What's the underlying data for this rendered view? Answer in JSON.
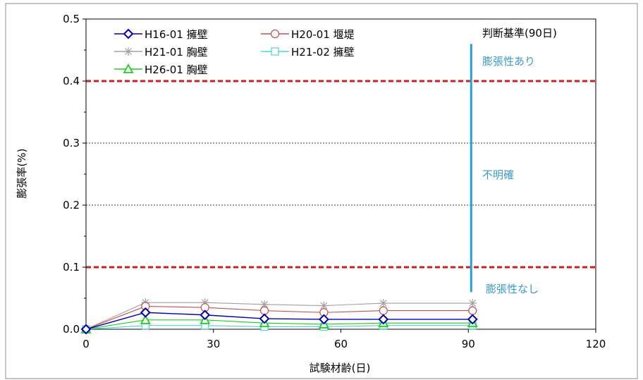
{
  "chart_data": {
    "type": "line",
    "title": "",
    "xlabel": "試験材齢(日)",
    "ylabel": "膨張率(%)",
    "xlim": [
      0,
      120
    ],
    "ylim": [
      0,
      0.5
    ],
    "x_ticks": [
      "0",
      "30",
      "60",
      "90",
      "120"
    ],
    "y_ticks": [
      "0.0",
      "0.1",
      "0.2",
      "0.3",
      "0.4",
      "0.5"
    ],
    "x": [
      0,
      14,
      28,
      42,
      56,
      70,
      91
    ],
    "series": [
      {
        "name": "H16-01 擁壁",
        "color": "#0000b0",
        "marker": "diamond",
        "values": [
          0,
          0.027,
          0.023,
          0.017,
          0.016,
          0.016,
          0.016
        ]
      },
      {
        "name": "H20-01 堰堤",
        "color": "#c0504d",
        "marker": "circle",
        "values": [
          0,
          0.037,
          0.035,
          0.03,
          0.027,
          0.03,
          0.03
        ]
      },
      {
        "name": "H21-01 胸壁",
        "color": "#a0a0a0",
        "marker": "asterisk",
        "values": [
          0,
          0.043,
          0.043,
          0.04,
          0.038,
          0.042,
          0.042
        ]
      },
      {
        "name": "H21-02 擁壁",
        "color": "#4bd3d6",
        "marker": "square",
        "values": [
          0,
          0.006,
          0.006,
          0.004,
          0.004,
          0.006,
          0.006
        ]
      },
      {
        "name": "H26-01 胸壁",
        "color": "#22cc22",
        "marker": "triangle",
        "values": [
          0,
          0.015,
          0.015,
          0.01,
          0.008,
          0.01,
          0.01
        ]
      }
    ],
    "reference_lines": [
      {
        "value": 0.4,
        "color": "#cc1f1f",
        "style": "dashed"
      },
      {
        "value": 0.1,
        "color": "#cc1f1f",
        "style": "dashed"
      }
    ],
    "grid_lines": [
      0.2,
      0.3
    ],
    "criterion": {
      "title": "判断基準(90日)",
      "x": 91,
      "y_range": [
        0.06,
        0.46
      ],
      "color": "#2aa0cc",
      "zones": [
        "膨張性あり",
        "不明確",
        "膨張性なし"
      ]
    },
    "legend_placement": "top-left"
  }
}
